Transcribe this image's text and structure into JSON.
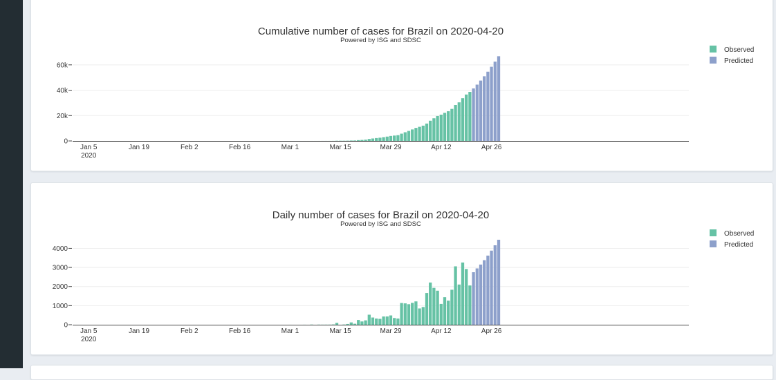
{
  "colors": {
    "observed": "#66c2a5",
    "predicted": "#8da0cb"
  },
  "chart_data": [
    {
      "type": "bar",
      "title": "Cumulative number of cases for Brazil on 2020-04-20",
      "subtitle": "Powered by ISG and SDSC",
      "x_start": "2020-01-01",
      "x_tick_labels": [
        "Jan 5",
        "Jan 19",
        "Feb 2",
        "Feb 16",
        "Mar 1",
        "Mar 15",
        "Mar 29",
        "Apr 12",
        "Apr 26"
      ],
      "x_tick_year": "2020",
      "y_ticks": [
        0,
        20000,
        40000,
        60000
      ],
      "y_tick_labels": [
        "0",
        "20k",
        "40k",
        "60k"
      ],
      "ylim": [
        0,
        67000
      ],
      "legend": [
        "Observed",
        "Predicted"
      ],
      "legend_position": "top-right",
      "series": [
        {
          "name": "Observed",
          "values": [
            0,
            0,
            0,
            0,
            0,
            0,
            0,
            0,
            0,
            0,
            0,
            0,
            0,
            0,
            0,
            0,
            0,
            0,
            0,
            0,
            0,
            0,
            0,
            0,
            0,
            0,
            0,
            0,
            0,
            0,
            0,
            0,
            0,
            0,
            0,
            0,
            0,
            0,
            0,
            0,
            0,
            0,
            0,
            0,
            0,
            0,
            0,
            0,
            0,
            0,
            0,
            0,
            0,
            0,
            0,
            0,
            0,
            1,
            1,
            1,
            2,
            2,
            2,
            2,
            4,
            4,
            13,
            13,
            20,
            25,
            31,
            38,
            52,
            151,
            151,
            162,
            200,
            321,
            372,
            621,
            793,
            1021,
            1546,
            1924,
            2247,
            2554,
            2985,
            3417,
            3904,
            4256,
            4579,
            5717,
            6836,
            7910,
            9056,
            10278,
            11130,
            12056,
            13717,
            15927,
            17857,
            19638,
            20727,
            22169,
            23430,
            25262,
            28320,
            30425,
            33682,
            36599,
            38654
          ]
        },
        {
          "name": "Predicted",
          "values": [
            41400,
            44400,
            47600,
            51000,
            54600,
            58500,
            62500,
            66800
          ]
        }
      ]
    },
    {
      "type": "bar",
      "title": "Daily number of cases for Brazil on 2020-04-20",
      "subtitle": "Powered by ISG and SDSC",
      "x_start": "2020-01-01",
      "x_tick_labels": [
        "Jan 5",
        "Jan 19",
        "Feb 2",
        "Feb 16",
        "Mar 1",
        "Mar 15",
        "Mar 29",
        "Apr 12",
        "Apr 26"
      ],
      "x_tick_year": "2020",
      "y_ticks": [
        0,
        1000,
        2000,
        3000,
        4000
      ],
      "y_tick_labels": [
        "0",
        "1000",
        "2000",
        "3000",
        "4000"
      ],
      "ylim": [
        0,
        4450
      ],
      "legend": [
        "Observed",
        "Predicted"
      ],
      "legend_position": "top-right",
      "series": [
        {
          "name": "Observed",
          "values": [
            0,
            0,
            0,
            0,
            0,
            0,
            0,
            0,
            0,
            0,
            0,
            0,
            0,
            0,
            0,
            0,
            0,
            0,
            0,
            0,
            0,
            0,
            0,
            0,
            0,
            0,
            0,
            0,
            0,
            0,
            0,
            0,
            0,
            0,
            0,
            0,
            0,
            0,
            0,
            0,
            0,
            0,
            0,
            0,
            0,
            0,
            0,
            0,
            0,
            0,
            0,
            0,
            0,
            0,
            0,
            0,
            0,
            0,
            0,
            0,
            1,
            0,
            0,
            0,
            2,
            0,
            9,
            0,
            7,
            5,
            6,
            7,
            14,
            99,
            0,
            11,
            38,
            121,
            51,
            249,
            172,
            228,
            525,
            378,
            323,
            307,
            431,
            432,
            487,
            352,
            323,
            1138,
            1119,
            1074,
            1146,
            1222,
            852,
            926,
            1661,
            2210,
            1930,
            1781,
            1089,
            1442,
            1261,
            1832,
            3058,
            2105,
            3257,
            2917,
            2055
          ]
        },
        {
          "name": "Predicted",
          "values": [
            2750,
            2950,
            3150,
            3380,
            3620,
            3880,
            4160,
            4450
          ]
        }
      ]
    }
  ]
}
